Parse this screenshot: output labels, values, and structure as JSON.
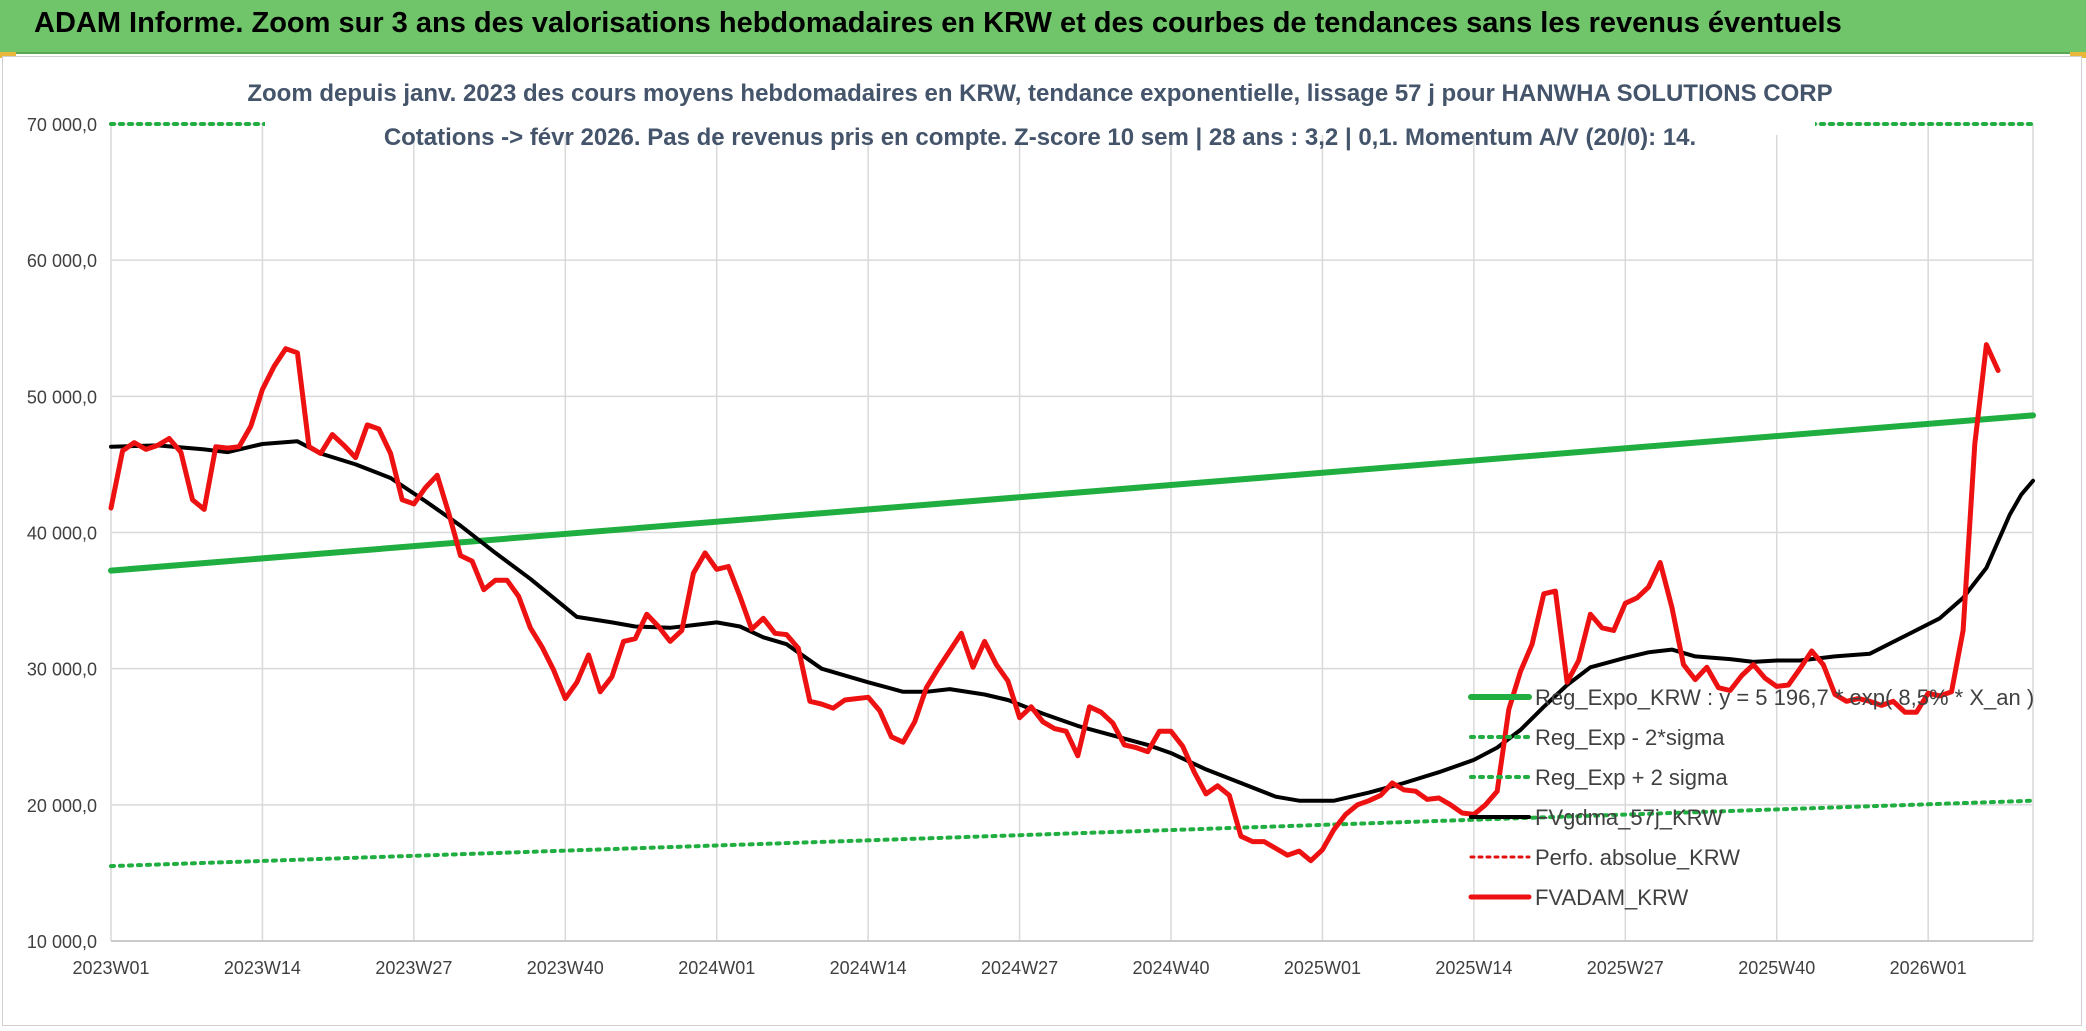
{
  "header": {
    "title": "ADAM Informe. Zoom sur 3 ans des valorisations hebdomadaires en KRW et des courbes de tendances sans les revenus éventuels"
  },
  "chart_data": {
    "type": "line",
    "title_line1": "Zoom depuis janv. 2023 des cours moyens hebdomadaires en KRW, tendance exponentielle, lissage 57 j pour HANWHA SOLUTIONS CORP",
    "title_line2": "Cotations -> févr 2026. Pas de revenus pris en compte. Z-score 10 sem | 28 ans : 3,2 | 0,1. Momentum A/V (20/0): 14.",
    "ylim": [
      10000,
      70000
    ],
    "y_ticks": [
      "10 000,0",
      "20 000,0",
      "30 000,0",
      "40 000,0",
      "50 000,0",
      "60 000,0",
      "70 000,0"
    ],
    "y_tick_values": [
      10000,
      20000,
      30000,
      40000,
      50000,
      60000,
      70000
    ],
    "x_ticks": [
      "2023W01",
      "2023W14",
      "2023W27",
      "2023W40",
      "2024W01",
      "2024W14",
      "2024W27",
      "2024W40",
      "2025W01",
      "2025W14",
      "2025W27",
      "2025W40",
      "2026W01"
    ],
    "x_tick_weeks": [
      0,
      13,
      26,
      39,
      52,
      65,
      78,
      91,
      104,
      117,
      130,
      143,
      156
    ],
    "x_last_week": 165,
    "grid": true,
    "legend_position": "right",
    "colors": {
      "reg_expo": "#1fae3f",
      "sigma": "#1fae3f",
      "fvgdma": "#000000",
      "perfo": "#e01010",
      "fvadam": "#ee1111"
    },
    "series": [
      {
        "name": "Reg_Expo_KRW : y = 5 196,7 * exp( 8,5% * X_an )",
        "key": "reg_expo",
        "style": "solid",
        "points": [
          [
            0,
            37200
          ],
          [
            165,
            48600
          ]
        ]
      },
      {
        "name": "Reg_Exp - 2*sigma",
        "key": "sigma_low",
        "style": "dotted",
        "points": [
          [
            0,
            15500
          ],
          [
            165,
            20300
          ]
        ]
      },
      {
        "name": "Reg_Exp + 2 sigma",
        "key": "sigma_high",
        "style": "dotted",
        "points": [
          [
            0,
            70000
          ],
          [
            165,
            70000
          ]
        ]
      },
      {
        "name": "FVgdma_57j_KRW",
        "key": "fvgdma",
        "style": "solid",
        "points": [
          [
            0,
            46300
          ],
          [
            4,
            46400
          ],
          [
            8,
            46100
          ],
          [
            10,
            45900
          ],
          [
            13,
            46500
          ],
          [
            16,
            46700
          ],
          [
            18,
            45800
          ],
          [
            21,
            45000
          ],
          [
            24,
            44000
          ],
          [
            27,
            42300
          ],
          [
            30,
            40500
          ],
          [
            33,
            38500
          ],
          [
            36,
            36600
          ],
          [
            39,
            34500
          ],
          [
            40,
            33800
          ],
          [
            43,
            33400
          ],
          [
            45,
            33100
          ],
          [
            48,
            33000
          ],
          [
            50,
            33200
          ],
          [
            52,
            33400
          ],
          [
            54,
            33100
          ],
          [
            56,
            32300
          ],
          [
            58,
            31800
          ],
          [
            61,
            30000
          ],
          [
            65,
            29000
          ],
          [
            68,
            28300
          ],
          [
            70,
            28300
          ],
          [
            72,
            28500
          ],
          [
            75,
            28100
          ],
          [
            77,
            27700
          ],
          [
            80,
            26700
          ],
          [
            83,
            25800
          ],
          [
            86,
            25100
          ],
          [
            89,
            24400
          ],
          [
            91,
            23800
          ],
          [
            94,
            22600
          ],
          [
            97,
            21600
          ],
          [
            100,
            20600
          ],
          [
            102,
            20300
          ],
          [
            105,
            20300
          ],
          [
            108,
            20900
          ],
          [
            111,
            21600
          ],
          [
            114,
            22400
          ],
          [
            117,
            23300
          ],
          [
            119,
            24200
          ],
          [
            121,
            25500
          ],
          [
            123,
            27200
          ],
          [
            125,
            28800
          ],
          [
            127,
            30100
          ],
          [
            130,
            30800
          ],
          [
            132,
            31200
          ],
          [
            134,
            31400
          ],
          [
            136,
            30900
          ],
          [
            139,
            30700
          ],
          [
            141,
            30500
          ],
          [
            143,
            30600
          ],
          [
            145,
            30600
          ],
          [
            148,
            30900
          ],
          [
            151,
            31100
          ],
          [
            154,
            32400
          ],
          [
            157,
            33700
          ],
          [
            159,
            35200
          ],
          [
            161,
            37400
          ],
          [
            163,
            41300
          ],
          [
            164,
            42800
          ],
          [
            165,
            43800
          ]
        ]
      },
      {
        "name": "Perfo. absolue_KRW",
        "key": "perfo",
        "style": "dotted",
        "points": []
      },
      {
        "name": "FVADAM_KRW",
        "key": "fvadam",
        "style": "solid",
        "points": [
          [
            0,
            41800
          ],
          [
            1,
            46000
          ],
          [
            2,
            46600
          ],
          [
            3,
            46100
          ],
          [
            4,
            46400
          ],
          [
            5,
            46900
          ],
          [
            6,
            45900
          ],
          [
            7,
            42400
          ],
          [
            8,
            41700
          ],
          [
            9,
            46300
          ],
          [
            10,
            46200
          ],
          [
            11,
            46300
          ],
          [
            12,
            47800
          ],
          [
            13,
            50500
          ],
          [
            14,
            52200
          ],
          [
            15,
            53500
          ],
          [
            16,
            53200
          ],
          [
            17,
            46300
          ],
          [
            18,
            45800
          ],
          [
            19,
            47200
          ],
          [
            20,
            46400
          ],
          [
            21,
            45500
          ],
          [
            22,
            47900
          ],
          [
            23,
            47600
          ],
          [
            24,
            45800
          ],
          [
            25,
            42400
          ],
          [
            26,
            42100
          ],
          [
            27,
            43300
          ],
          [
            28,
            44200
          ],
          [
            29,
            41400
          ],
          [
            30,
            38300
          ],
          [
            31,
            37900
          ],
          [
            32,
            35800
          ],
          [
            33,
            36500
          ],
          [
            34,
            36500
          ],
          [
            35,
            35300
          ],
          [
            36,
            33000
          ],
          [
            37,
            31600
          ],
          [
            38,
            29900
          ],
          [
            39,
            27800
          ],
          [
            40,
            29000
          ],
          [
            41,
            31000
          ],
          [
            42,
            28300
          ],
          [
            43,
            29400
          ],
          [
            44,
            32000
          ],
          [
            45,
            32200
          ],
          [
            46,
            34000
          ],
          [
            47,
            33100
          ],
          [
            48,
            32000
          ],
          [
            49,
            32800
          ],
          [
            50,
            37000
          ],
          [
            51,
            38500
          ],
          [
            52,
            37300
          ],
          [
            53,
            37500
          ],
          [
            54,
            35300
          ],
          [
            55,
            32900
          ],
          [
            56,
            33700
          ],
          [
            57,
            32600
          ],
          [
            58,
            32500
          ],
          [
            59,
            31500
          ],
          [
            60,
            27600
          ],
          [
            61,
            27400
          ],
          [
            62,
            27100
          ],
          [
            63,
            27700
          ],
          [
            64,
            27800
          ],
          [
            65,
            27900
          ],
          [
            66,
            26900
          ],
          [
            67,
            25000
          ],
          [
            68,
            24600
          ],
          [
            69,
            26100
          ],
          [
            70,
            28600
          ],
          [
            71,
            30000
          ],
          [
            72,
            31300
          ],
          [
            73,
            32600
          ],
          [
            74,
            30100
          ],
          [
            75,
            32000
          ],
          [
            76,
            30300
          ],
          [
            77,
            29100
          ],
          [
            78,
            26400
          ],
          [
            79,
            27200
          ],
          [
            80,
            26100
          ],
          [
            81,
            25600
          ],
          [
            82,
            25400
          ],
          [
            83,
            23600
          ],
          [
            84,
            27200
          ],
          [
            85,
            26800
          ],
          [
            86,
            26000
          ],
          [
            87,
            24400
          ],
          [
            88,
            24200
          ],
          [
            89,
            23900
          ],
          [
            90,
            25400
          ],
          [
            91,
            25400
          ],
          [
            92,
            24300
          ],
          [
            93,
            22400
          ],
          [
            94,
            20800
          ],
          [
            95,
            21400
          ],
          [
            96,
            20700
          ],
          [
            97,
            17700
          ],
          [
            98,
            17300
          ],
          [
            99,
            17300
          ],
          [
            100,
            16800
          ],
          [
            101,
            16300
          ],
          [
            102,
            16600
          ],
          [
            103,
            15900
          ],
          [
            104,
            16700
          ],
          [
            105,
            18200
          ],
          [
            106,
            19300
          ],
          [
            107,
            20000
          ],
          [
            108,
            20300
          ],
          [
            109,
            20700
          ],
          [
            110,
            21600
          ],
          [
            111,
            21100
          ],
          [
            112,
            21000
          ],
          [
            113,
            20400
          ],
          [
            114,
            20500
          ],
          [
            115,
            20000
          ],
          [
            116,
            19400
          ],
          [
            117,
            19300
          ],
          [
            118,
            20000
          ],
          [
            119,
            21000
          ],
          [
            120,
            27000
          ],
          [
            121,
            29800
          ],
          [
            122,
            31800
          ],
          [
            123,
            35500
          ],
          [
            124,
            35700
          ],
          [
            125,
            29000
          ],
          [
            126,
            30600
          ],
          [
            127,
            34000
          ],
          [
            128,
            33000
          ],
          [
            129,
            32800
          ],
          [
            130,
            34800
          ],
          [
            131,
            35200
          ],
          [
            132,
            36000
          ],
          [
            133,
            37800
          ],
          [
            134,
            34500
          ],
          [
            135,
            30300
          ],
          [
            136,
            29200
          ],
          [
            137,
            30100
          ],
          [
            138,
            28600
          ],
          [
            139,
            28400
          ],
          [
            140,
            29500
          ],
          [
            141,
            30300
          ],
          [
            142,
            29300
          ],
          [
            143,
            28700
          ],
          [
            144,
            28800
          ],
          [
            145,
            30000
          ],
          [
            146,
            31300
          ],
          [
            147,
            30300
          ],
          [
            148,
            28100
          ],
          [
            149,
            27600
          ],
          [
            150,
            27800
          ],
          [
            151,
            27600
          ],
          [
            152,
            27300
          ],
          [
            153,
            27600
          ],
          [
            154,
            26800
          ],
          [
            155,
            26800
          ],
          [
            156,
            28200
          ],
          [
            157,
            28000
          ],
          [
            158,
            28300
          ],
          [
            159,
            32800
          ],
          [
            160,
            46500
          ],
          [
            161,
            53800
          ],
          [
            162,
            51900
          ]
        ]
      }
    ]
  }
}
